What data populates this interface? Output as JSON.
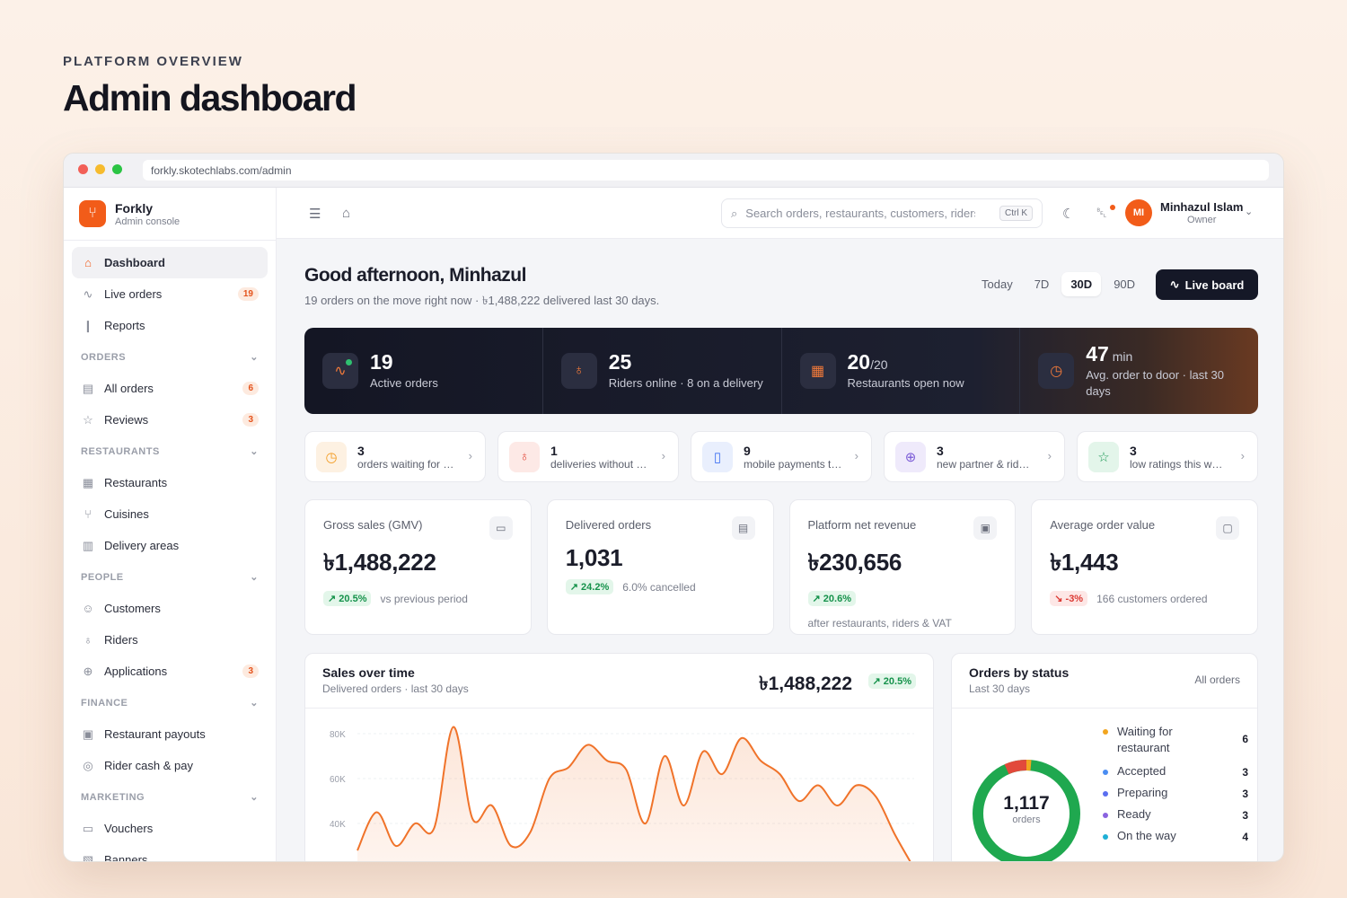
{
  "page": {
    "eyebrow": "PLATFORM OVERVIEW",
    "title": "Admin dashboard"
  },
  "browser": {
    "url": "forkly.skotechlabs.com/admin"
  },
  "brand": {
    "name": "Forkly",
    "subtitle": "Admin console"
  },
  "sidebar": {
    "items": [
      {
        "label": "Dashboard",
        "icon": "home-icon"
      },
      {
        "label": "Live orders",
        "icon": "activity-icon",
        "badge": "19"
      },
      {
        "label": "Reports",
        "icon": "bar-chart-icon"
      }
    ],
    "sections": [
      {
        "title": "ORDERS",
        "items": [
          {
            "label": "All orders",
            "badge": "6"
          },
          {
            "label": "Reviews",
            "badge": "3"
          }
        ]
      },
      {
        "title": "RESTAURANTS",
        "items": [
          {
            "label": "Restaurants"
          },
          {
            "label": "Cuisines"
          },
          {
            "label": "Delivery areas"
          }
        ]
      },
      {
        "title": "PEOPLE",
        "items": [
          {
            "label": "Customers"
          },
          {
            "label": "Riders"
          },
          {
            "label": "Applications",
            "badge": "3"
          }
        ]
      },
      {
        "title": "FINANCE",
        "items": [
          {
            "label": "Restaurant payouts"
          },
          {
            "label": "Rider cash & pay"
          }
        ]
      },
      {
        "title": "MARKETING",
        "items": [
          {
            "label": "Vouchers"
          },
          {
            "label": "Banners"
          }
        ]
      }
    ]
  },
  "topbar": {
    "search_placeholder": "Search orders, restaurants, customers, riders",
    "shortcut": "Ctrl K",
    "user": {
      "initials": "MI",
      "name": "Minhazul Islam",
      "role": "Owner"
    }
  },
  "greeting": {
    "title": "Good afternoon, Minhazul",
    "subtitle": "19 orders on the move right now · ৳1,488,222 delivered last 30 days."
  },
  "ranges": [
    "Today",
    "7D",
    "30D",
    "90D"
  ],
  "selected_range": "30D",
  "live_board_label": "Live board",
  "hero": [
    {
      "value": "19",
      "suffix": "",
      "label": "Active orders",
      "icon": "pulse-icon"
    },
    {
      "value": "25",
      "suffix": "",
      "label": "Riders online · 8 on a delivery",
      "icon": "bike-icon"
    },
    {
      "value": "20",
      "suffix": "/20",
      "label": "Restaurants open now",
      "icon": "store-icon"
    },
    {
      "value": "47",
      "suffix": " min",
      "label": "Avg. order to door · last 30 days",
      "icon": "timer-icon"
    }
  ],
  "alerts": [
    {
      "count": "3",
      "label": "orders waiting for restaurant",
      "icon": "clock-icon",
      "color": "#f29a1f",
      "bg": "#fdf1e2"
    },
    {
      "count": "1",
      "label": "deliveries without rider",
      "icon": "bike-icon",
      "color": "#e2493b",
      "bg": "#fde9e6"
    },
    {
      "count": "9",
      "label": "mobile payments to verify",
      "icon": "phone-icon",
      "color": "#3d6ff2",
      "bg": "#e9effd"
    },
    {
      "count": "3",
      "label": "new partner & rider applications",
      "icon": "user-plus-icon",
      "color": "#7b5bd6",
      "bg": "#efeafb"
    },
    {
      "count": "3",
      "label": "low ratings this week",
      "icon": "star-icon",
      "color": "#1f9a57",
      "bg": "#e3f5ea"
    }
  ],
  "kpis": [
    {
      "label": "Gross sales (GMV)",
      "value": "৳1,488,222",
      "delta": "20.5%",
      "dir": "up",
      "note": "vs previous period",
      "extra": "",
      "icon": "cash-icon"
    },
    {
      "label": "Delivered orders",
      "value": "1,031",
      "delta": "24.2%",
      "dir": "up",
      "note": "6.0% cancelled",
      "extra": "",
      "icon": "receipt-icon"
    },
    {
      "label": "Platform net revenue",
      "value": "৳230,656",
      "delta": "20.6%",
      "dir": "up",
      "note": "",
      "extra": "after restaurants, riders & VAT",
      "icon": "wallet-icon"
    },
    {
      "label": "Average order value",
      "value": "৳1,443",
      "delta": "-3%",
      "dir": "down",
      "note": "166 customers ordered",
      "extra": "",
      "icon": "bag-icon"
    }
  ],
  "sales_chart": {
    "title": "Sales over time",
    "subtitle": "Delivered orders · last 30 days",
    "total": "৳1,488,222",
    "delta": "20.5%",
    "color": "#f0732a"
  },
  "chart_data": {
    "type": "area",
    "x": [
      1,
      2,
      3,
      4,
      5,
      6,
      7,
      8,
      9,
      10,
      11,
      12,
      13,
      14,
      15,
      16,
      17,
      18,
      19,
      20,
      21,
      22,
      23,
      24,
      25,
      26,
      27,
      28,
      29,
      30
    ],
    "series": [
      {
        "values": [
          28000,
          45000,
          30000,
          40000,
          38000,
          83000,
          42000,
          48000,
          30000,
          36000,
          60000,
          65000,
          75000,
          68000,
          64000,
          40000,
          70000,
          48000,
          72000,
          62000,
          78000,
          68000,
          62000,
          50000,
          57000,
          48000,
          57000,
          52000,
          35000,
          20000
        ]
      }
    ],
    "yticks": [
      "80K",
      "60K",
      "40K"
    ],
    "ylim": [
      0,
      90000
    ],
    "grid": true
  },
  "status_panel": {
    "title": "Orders by status",
    "subtitle": "Last 30 days",
    "filter": "All orders",
    "total": "1,117",
    "total_label": "orders",
    "items": [
      {
        "label": "Waiting for restaurant",
        "count": "6",
        "color": "#f2a51f"
      },
      {
        "label": "Accepted",
        "count": "3",
        "color": "#4a8df2"
      },
      {
        "label": "Preparing",
        "count": "3",
        "color": "#5a6ef0"
      },
      {
        "label": "Ready",
        "count": "3",
        "color": "#8a63e0"
      },
      {
        "label": "On the way",
        "count": "4",
        "color": "#1fb0d6"
      }
    ]
  }
}
